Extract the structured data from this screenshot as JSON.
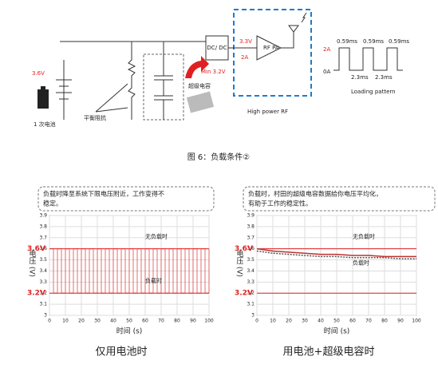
{
  "diagram": {
    "battery_voltage": "3.6V",
    "battery": "1 次电池",
    "balance": "平衡阻抗",
    "dcdc": "DC/ DC",
    "supercap": "超级电容",
    "min_voltage": "Min 3.2V",
    "out_voltage": "3.3V",
    "out_current": "2A",
    "pa": "RF PA",
    "rf_block": "High power RF",
    "pulse_widths": [
      "0.59ms",
      "0.59ms",
      "0.59ms"
    ],
    "high_level": "2A",
    "low_level": "0A",
    "gaps": [
      "2.3ms",
      "2.3ms"
    ],
    "pattern": "Loading pattern"
  },
  "caption": "图 6：负载条件②",
  "chart_data": [
    {
      "type": "line",
      "step": true,
      "x": [
        0,
        2.5,
        5,
        7.5,
        10,
        12.5,
        15,
        17.5,
        20,
        22.5,
        25,
        27.5,
        30,
        32.5,
        35,
        37.5,
        40,
        42.5,
        45,
        47.5,
        50,
        52.5,
        55,
        57.5,
        60,
        62.5,
        65,
        67.5,
        70,
        72.5,
        75,
        77.5,
        80,
        82.5,
        85,
        87.5,
        90,
        92.5,
        95,
        97.5,
        100
      ],
      "series": [
        {
          "name": "无负载时",
          "color": "#e03030",
          "values": [
            3.6,
            3.2,
            3.6,
            3.2,
            3.6,
            3.2,
            3.6,
            3.2,
            3.6,
            3.2,
            3.6,
            3.2,
            3.6,
            3.2,
            3.6,
            3.2,
            3.6,
            3.2,
            3.6,
            3.2,
            3.6,
            3.2,
            3.6,
            3.2,
            3.6,
            3.2,
            3.6,
            3.2,
            3.6,
            3.2,
            3.6,
            3.2,
            3.6,
            3.2,
            3.6,
            3.2,
            3.6,
            3.2,
            3.6,
            3.2,
            3.6
          ]
        }
      ],
      "load_label": "负载时",
      "annotations": [
        {
          "text": "3.6V",
          "y": 3.6
        },
        {
          "text": "3.2V",
          "y": 3.2
        }
      ],
      "callout": [
        "负载时降至系统下限电压附近，工作变得不",
        "稳定。"
      ],
      "xlim": [
        0,
        100
      ],
      "xticks": [
        0,
        10,
        20,
        30,
        40,
        50,
        60,
        70,
        80,
        90,
        100
      ],
      "ylim": [
        3,
        3.9
      ],
      "yticks": [
        3,
        3.1,
        3.2,
        3.3,
        3.4,
        3.5,
        3.6,
        3.7,
        3.8,
        3.9
      ],
      "grid": true,
      "x_label": "时间 (s)",
      "y_label": "电压 (V)",
      "footer": "仅用电池时"
    },
    {
      "type": "line",
      "step": false,
      "x": [
        0,
        10,
        20,
        30,
        40,
        50,
        60,
        70,
        80,
        90,
        100
      ],
      "series": [
        {
          "name": "无负载时",
          "color": "#c03030",
          "values": [
            3.6,
            3.58,
            3.57,
            3.56,
            3.55,
            3.55,
            3.54,
            3.54,
            3.53,
            3.53,
            3.53
          ]
        },
        {
          "name": "负载时",
          "color": "#555555",
          "values": [
            3.58,
            3.56,
            3.55,
            3.54,
            3.53,
            3.53,
            3.52,
            3.52,
            3.52,
            3.51,
            3.51
          ]
        }
      ],
      "annotations": [
        {
          "text": "3.6V",
          "y": 3.6
        },
        {
          "text": "3.2V",
          "y": 3.2
        }
      ],
      "callout": [
        "负载时，村田的超级电容数据给你电压平均化，",
        "有助于工作的稳定性。"
      ],
      "xlim": [
        0,
        100
      ],
      "xticks": [
        0,
        10,
        20,
        30,
        40,
        50,
        60,
        70,
        80,
        90,
        100
      ],
      "ylim": [
        3,
        3.9
      ],
      "yticks": [
        3,
        3.1,
        3.2,
        3.3,
        3.4,
        3.5,
        3.6,
        3.7,
        3.8,
        3.9
      ],
      "grid": true,
      "x_label": "时间 (s)",
      "y_label": "电压 (V)",
      "footer": "用电池+超级电容时"
    }
  ]
}
